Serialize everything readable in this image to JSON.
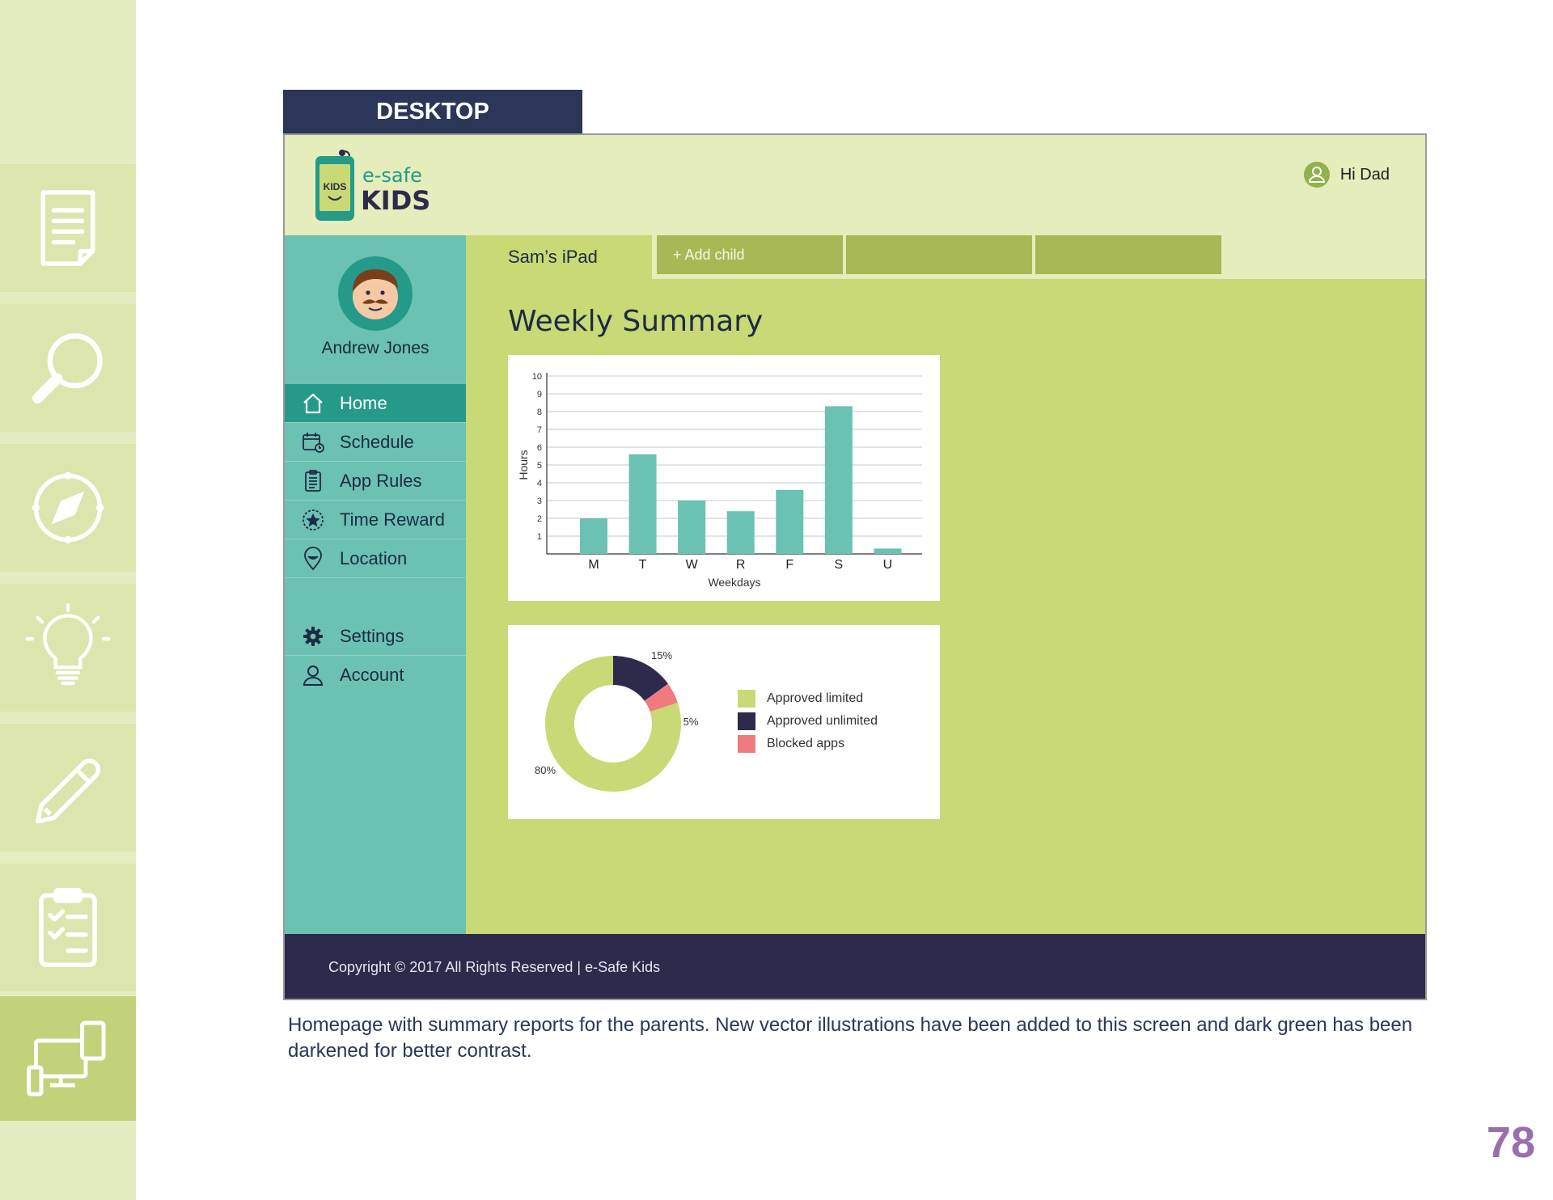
{
  "left_rail": {
    "icons": [
      "document-icon",
      "magnifier-icon",
      "compass-icon",
      "lightbulb-icon",
      "pencil-icon",
      "clipboard-icon",
      "devices-icon"
    ],
    "active_icon": "devices-icon"
  },
  "desktop_tab": {
    "label": "DESKTOP"
  },
  "app": {
    "logo": {
      "top": "e-safe",
      "bottom": "KIDS",
      "phone_text": "KIDS"
    },
    "header": {
      "greeting": "Hi Dad"
    },
    "sidebar": {
      "user_name": "Andrew Jones",
      "items": [
        {
          "label": "Home",
          "icon": "home-icon",
          "active": true
        },
        {
          "label": "Schedule",
          "icon": "calendar-icon"
        },
        {
          "label": "App Rules",
          "icon": "clipboard-list-icon"
        },
        {
          "label": "Time Reward",
          "icon": "star-badge-icon"
        },
        {
          "label": "Location",
          "icon": "location-pin-icon"
        },
        {
          "label": "Settings",
          "icon": "gear-icon"
        },
        {
          "label": "Account",
          "icon": "user-icon"
        }
      ]
    },
    "tabs": {
      "current": "Sam’s iPad",
      "add_child": "+   Add child"
    },
    "main": {
      "title": "Weekly Summary"
    },
    "footer": {
      "text": "Copyright © 2017 All Rights Reserved | e-Safe Kids"
    }
  },
  "chart_data": [
    {
      "type": "bar",
      "categories": [
        "M",
        "T",
        "W",
        "R",
        "F",
        "S",
        "U"
      ],
      "values": [
        2,
        5.6,
        3,
        2.4,
        3.6,
        8.3,
        0.3
      ],
      "xlabel": "Weekdays",
      "ylabel": "Hours",
      "ylim": [
        0,
        10
      ],
      "yticks": [
        1,
        2,
        3,
        4,
        5,
        6,
        7,
        8,
        9,
        10
      ],
      "grid": true,
      "color": "#6bc1b2"
    },
    {
      "type": "pie",
      "donut": true,
      "slices": [
        {
          "label": "Approved limited",
          "value": 80,
          "display": "80%",
          "color": "#c8d975"
        },
        {
          "label": "Approved unlimited",
          "value": 15,
          "display": "15%",
          "color": "#2d2a4c"
        },
        {
          "label": "Blocked apps",
          "value": 5,
          "display": "5%",
          "color": "#f07b7e"
        }
      ],
      "legend": "right"
    }
  ],
  "caption": "Homepage with summary reports for the parents. New vector illustrations have been added to this screen and dark green has been darkened for better contrast.",
  "page_number": "78"
}
